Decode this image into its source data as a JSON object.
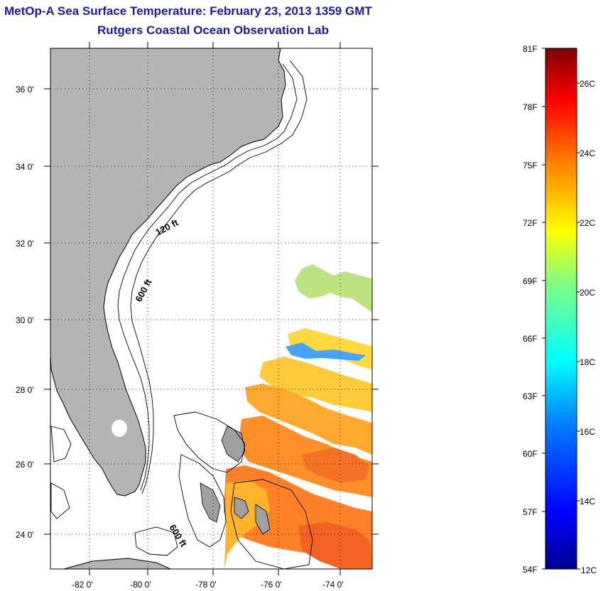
{
  "header": {
    "title": "MetOp-A Sea Surface Temperature:  February 23, 2013 1359 GMT",
    "subtitle": "Rutgers Coastal Ocean Observation Lab"
  },
  "map": {
    "lon_ticks": [
      -82,
      -80,
      -78,
      -76,
      -74
    ],
    "lon_labels": [
      "-82 0'",
      "-80 0'",
      "-78 0'",
      "-76 0'",
      "-74 0'"
    ],
    "lat_ticks": [
      36,
      34,
      32,
      30,
      28,
      26,
      24
    ],
    "lat_labels": [
      "36 0'",
      "34 0'",
      "32 0'",
      "30 0'",
      "28 0'",
      "26 0'",
      "24 0'"
    ],
    "lon_range": [
      -83.0,
      -73.0
    ],
    "lat_range": [
      23.0,
      37.2
    ],
    "grid": "dotted",
    "land_color": "#b4b4b4",
    "contour_labels": [
      "120 ft",
      "600 ft",
      "600 ft"
    ]
  },
  "colorbar": {
    "fahrenheit_labels": [
      "81F",
      "78F",
      "75F",
      "72F",
      "69F",
      "66F",
      "63F",
      "60F",
      "57F",
      "54F"
    ],
    "celsius_labels": [
      "26C",
      "24C",
      "22C",
      "20C",
      "18C",
      "16C",
      "14C",
      "12C"
    ],
    "min_c": 12,
    "max_c": 27,
    "colors": [
      "#00008f",
      "#0000ff",
      "#0080ff",
      "#00ffff",
      "#80ff80",
      "#ffff00",
      "#ff8000",
      "#ff0000",
      "#800000"
    ]
  }
}
